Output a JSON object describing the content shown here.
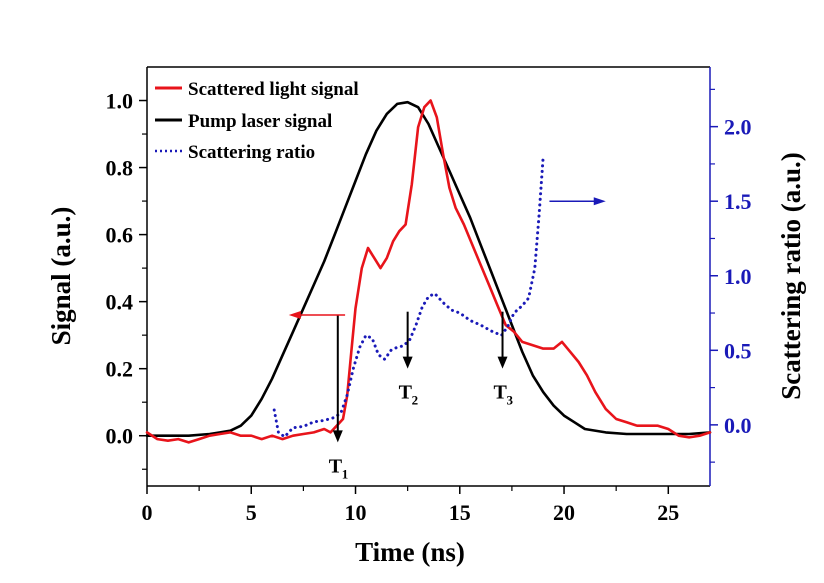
{
  "chart_data": {
    "type": "line",
    "title": "",
    "xlabel": "Time (ns)",
    "ylabel": "Signal (a.u.)",
    "y2label": "Scattering ratio (a.u.)",
    "xlim": [
      0,
      27
    ],
    "ylim": [
      -0.15,
      1.1
    ],
    "y2lim": [
      -0.41,
      2.4
    ],
    "xticks": [
      0,
      5,
      10,
      15,
      20,
      25
    ],
    "xtick_labels": [
      "0",
      "5",
      "10",
      "15",
      "20",
      "25"
    ],
    "yticks": [
      0.0,
      0.2,
      0.4,
      0.6,
      0.8,
      1.0
    ],
    "ytick_labels": [
      "0.0",
      "0.2",
      "0.4",
      "0.6",
      "0.8",
      "1.0"
    ],
    "y2ticks": [
      0.0,
      0.5,
      1.0,
      1.5,
      2.0
    ],
    "y2tick_labels": [
      "0.0",
      "0.5",
      "1.0",
      "1.5",
      "2.0"
    ],
    "grid": false,
    "legend_position": "top-left",
    "colors": {
      "scattered": "#e8141b",
      "pump": "#000000",
      "ratio": "#1a1ab8",
      "right_axis": "#1a1ab8"
    },
    "series": [
      {
        "name": "Scattered light signal",
        "axis": "left",
        "style": "solid",
        "x": [
          0,
          0.5,
          1,
          1.5,
          2,
          2.5,
          3,
          3.5,
          4,
          4.5,
          5,
          5.5,
          6,
          6.5,
          7,
          7.5,
          8,
          8.5,
          8.8,
          9.1,
          9.4,
          9.6,
          9.8,
          10.0,
          10.3,
          10.6,
          10.9,
          11.2,
          11.5,
          11.8,
          12.1,
          12.4,
          12.7,
          13.0,
          13.3,
          13.6,
          13.9,
          14.2,
          14.5,
          14.8,
          15.2,
          15.6,
          16.0,
          16.4,
          16.8,
          17.2,
          17.6,
          18.0,
          18.5,
          19.0,
          19.5,
          19.9,
          20.3,
          20.7,
          21.1,
          21.5,
          22.0,
          22.5,
          23.0,
          23.5,
          24.0,
          24.5,
          25.0,
          25.5,
          26.0,
          26.5,
          27
        ],
        "values": [
          0.01,
          -0.01,
          -0.015,
          -0.01,
          -0.02,
          -0.01,
          0.0,
          0.005,
          0.01,
          0.0,
          0.0,
          -0.01,
          0.0,
          -0.01,
          0.0,
          0.005,
          0.01,
          0.02,
          0.01,
          0.03,
          0.05,
          0.12,
          0.25,
          0.38,
          0.5,
          0.56,
          0.53,
          0.5,
          0.53,
          0.58,
          0.61,
          0.63,
          0.75,
          0.92,
          0.98,
          1.0,
          0.95,
          0.84,
          0.74,
          0.68,
          0.63,
          0.57,
          0.51,
          0.45,
          0.39,
          0.33,
          0.31,
          0.28,
          0.27,
          0.26,
          0.26,
          0.28,
          0.25,
          0.22,
          0.18,
          0.13,
          0.08,
          0.05,
          0.04,
          0.03,
          0.03,
          0.03,
          0.02,
          0.0,
          -0.005,
          0.0,
          0.01
        ]
      },
      {
        "name": "Pump laser signal",
        "axis": "left",
        "style": "solid",
        "x": [
          0,
          1,
          2,
          3,
          3.5,
          4,
          4.5,
          5,
          5.5,
          6,
          6.5,
          7,
          7.5,
          8,
          8.5,
          9,
          9.5,
          10,
          10.5,
          11,
          11.5,
          12,
          12.5,
          13,
          13.5,
          14,
          14.5,
          15,
          15.5,
          16,
          16.5,
          17,
          17.5,
          18,
          18.5,
          19,
          19.5,
          20,
          20.5,
          21,
          22,
          23,
          24,
          25,
          26,
          27
        ],
        "values": [
          0.0,
          0.0,
          0.0,
          0.005,
          0.01,
          0.015,
          0.03,
          0.06,
          0.11,
          0.17,
          0.24,
          0.31,
          0.38,
          0.45,
          0.52,
          0.6,
          0.68,
          0.76,
          0.84,
          0.91,
          0.96,
          0.99,
          0.995,
          0.98,
          0.93,
          0.86,
          0.79,
          0.72,
          0.65,
          0.57,
          0.49,
          0.41,
          0.33,
          0.25,
          0.18,
          0.13,
          0.09,
          0.06,
          0.04,
          0.02,
          0.01,
          0.005,
          0.005,
          0.005,
          0.005,
          0.01
        ]
      },
      {
        "name": "Scattering ratio",
        "axis": "right",
        "style": "dotted",
        "x": [
          6.1,
          6.3,
          6.6,
          7.0,
          7.5,
          8.0,
          8.5,
          9.0,
          9.3,
          9.6,
          9.9,
          10.2,
          10.5,
          10.8,
          11.1,
          11.4,
          11.7,
          12.0,
          12.3,
          12.6,
          12.9,
          13.2,
          13.5,
          13.8,
          14.2,
          14.6,
          15.0,
          15.5,
          16.0,
          16.5,
          17.0,
          17.3,
          17.6,
          18.0,
          18.3,
          18.6,
          18.8,
          19.0
        ],
        "values": [
          0.1,
          -0.05,
          -0.08,
          -0.02,
          -0.01,
          0.02,
          0.03,
          0.05,
          0.08,
          0.2,
          0.38,
          0.52,
          0.6,
          0.58,
          0.47,
          0.44,
          0.5,
          0.52,
          0.53,
          0.57,
          0.67,
          0.79,
          0.86,
          0.88,
          0.82,
          0.77,
          0.75,
          0.7,
          0.67,
          0.63,
          0.6,
          0.66,
          0.75,
          0.8,
          0.85,
          1.05,
          1.4,
          1.8
        ]
      }
    ],
    "annotations": [
      {
        "label": "T",
        "subscript": "1",
        "x": 9.15,
        "arrow_from": 0.36,
        "arrow_to": -0.02
      },
      {
        "label": "T",
        "subscript": "2",
        "x": 12.5,
        "arrow_from": 0.37,
        "arrow_to": 0.2
      },
      {
        "label": "T",
        "subscript": "3",
        "x": 17.05,
        "arrow_from": 0.37,
        "arrow_to": 0.2
      }
    ],
    "axis_arrows": [
      {
        "points_to": "left",
        "color": "#e8141b",
        "y_value": 0.36,
        "from_x": 9.5,
        "to_x": 6.8
      },
      {
        "points_to": "right",
        "color": "#1a1ab8",
        "y2_value": 1.5,
        "from_x": 19.3,
        "to_x": 22.0
      }
    ]
  }
}
